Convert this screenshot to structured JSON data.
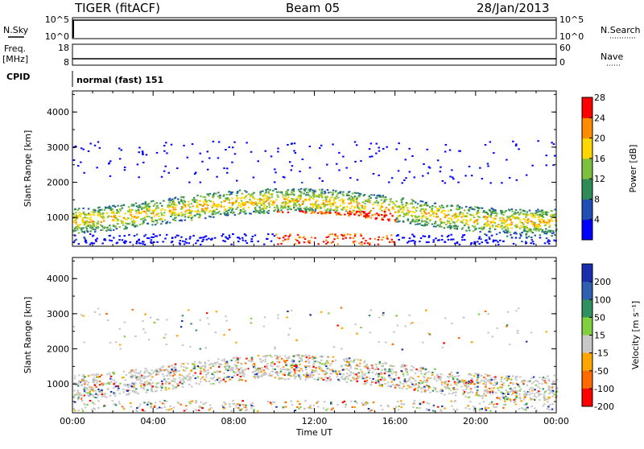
{
  "header": {
    "title": "TIGER (fitACF)",
    "beam": "Beam 05",
    "date": "28/Jan/2013"
  },
  "strip_panels": {
    "nsky_label": "N.Sky",
    "nsky_ticks": [
      "10^5",
      "10^0"
    ],
    "nsearch_label": "N.Search",
    "nsearch_ticks": [
      "10^5",
      "10^0"
    ],
    "freq_label": "Freq.",
    "freq_unit": "[MHz]",
    "freq_ticks": [
      "18",
      "8"
    ],
    "nave_label": "Nave",
    "nave_ticks": [
      "60",
      "0"
    ],
    "cpid_label": "CPID",
    "cpid_text": "normal (fast) 151"
  },
  "chart_data": [
    {
      "type": "heatmap",
      "title": "",
      "ylabel": "Slant Range [km]",
      "xlabel": "",
      "ylim": [
        180,
        4600
      ],
      "xlim": [
        "00:00",
        "24:00"
      ],
      "yticks": [
        "1000",
        "2000",
        "3000",
        "4000"
      ],
      "xticks": [
        "00:00",
        "04:00",
        "08:00",
        "12:00",
        "16:00",
        "20:00",
        "00:00"
      ],
      "colorbar": {
        "label": "Power [dB]",
        "ticks": [
          "4",
          "8",
          "12",
          "16",
          "20",
          "24",
          "28"
        ],
        "range": [
          0,
          30
        ],
        "colors": [
          "#0000ff",
          "#1f4fb4",
          "#2e8b57",
          "#7fbf3f",
          "#ffd700",
          "#ff8c00",
          "#ff0000"
        ]
      }
    },
    {
      "type": "heatmap",
      "title": "",
      "ylabel": "Slant Range [km]",
      "xlabel": "Time UT",
      "ylim": [
        180,
        4600
      ],
      "xlim": [
        "00:00",
        "24:00"
      ],
      "yticks": [
        "1000",
        "2000",
        "3000",
        "4000"
      ],
      "xticks": [
        "00:00",
        "04:00",
        "08:00",
        "12:00",
        "16:00",
        "20:00",
        "00:00"
      ],
      "colorbar": {
        "label": "Velocity [m s⁻¹]",
        "ticks": [
          "200",
          "100",
          "50",
          "15",
          "-15",
          "-50",
          "-100",
          "-200"
        ],
        "colors": [
          "#1a2fb0",
          "#2e5fb0",
          "#2f8f5f",
          "#7fcf3f",
          "#c8c8c8",
          "#ffa500",
          "#ff6a00",
          "#ff0000"
        ]
      }
    }
  ]
}
